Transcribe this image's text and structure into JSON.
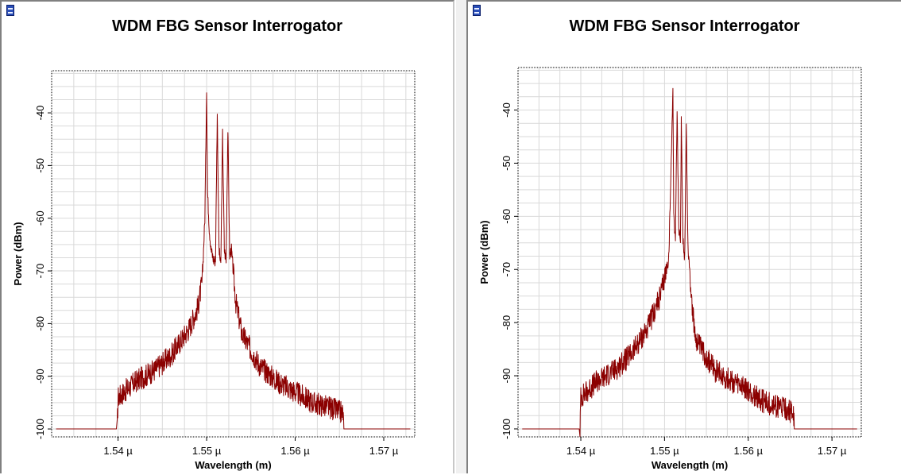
{
  "colors": {
    "trace": "#8b0000",
    "grid": "#d9d9d9",
    "frame": "#000000",
    "window_border": "#808080"
  },
  "icons": {
    "window": "chart-window-icon"
  },
  "chart_data": [
    {
      "type": "line",
      "title": "WDM FBG Sensor Interrogator",
      "xlabel": "Wavelength (m)",
      "ylabel": "Power (dBm)",
      "xlim": [
        1.5325e-06,
        1.5735e-06
      ],
      "ylim": [
        -101.5,
        -32
      ],
      "grid": true,
      "x_ticks": [
        1.54e-06,
        1.55e-06,
        1.56e-06,
        1.57e-06
      ],
      "x_tick_labels": [
        "1.54 µ",
        "1.55 µ",
        "1.56 µ",
        "1.57 µ"
      ],
      "y_ticks": [
        -100,
        -90,
        -80,
        -70,
        -60,
        -50,
        -40
      ],
      "y_tick_labels": [
        "-100",
        "-90",
        "-80",
        "-70",
        "-60",
        "-50",
        "-40"
      ],
      "series": [
        {
          "x": [
            1.533e-06,
            1.5399e-06,
            1.54e-06,
            1.542e-06,
            1.544e-06,
            1.546e-06,
            1.548e-06,
            1.549e-06,
            1.5495e-06,
            1.5498e-06,
            1.55e-06,
            1.5501e-06,
            1.5503e-06,
            1.5505e-06,
            1.5508e-06,
            1.551e-06,
            1.5512e-06,
            1.5514e-06,
            1.5516e-06,
            1.5518e-06,
            1.552e-06,
            1.5522e-06,
            1.5524e-06,
            1.5526e-06,
            1.5528e-06,
            1.553e-06,
            1.5533e-06,
            1.554e-06,
            1.556e-06,
            1.558e-06,
            1.56e-06,
            1.562e-06,
            1.564e-06,
            1.5654e-06,
            1.5655e-06,
            1.573e-06
          ],
          "y": [
            -100,
            -100,
            -94,
            -91,
            -89,
            -86,
            -81,
            -77,
            -72,
            -60,
            -35,
            -55,
            -62,
            -66,
            -68,
            -68,
            -40,
            -66,
            -69,
            -44,
            -66,
            -68,
            -43,
            -67,
            -66,
            -70,
            -76,
            -82,
            -88,
            -91,
            -93,
            -95,
            -96,
            -97,
            -100,
            -100
          ]
        }
      ]
    },
    {
      "type": "line",
      "title": "WDM FBG Sensor Interrogator",
      "xlabel": "Wavelength (m)",
      "ylabel": "Power (dBm)",
      "xlim": [
        1.5325e-06,
        1.5735e-06
      ],
      "ylim": [
        -101.5,
        -32
      ],
      "grid": true,
      "x_ticks": [
        1.54e-06,
        1.55e-06,
        1.56e-06,
        1.57e-06
      ],
      "x_tick_labels": [
        "1.54 µ",
        "1.55 µ",
        "1.56 µ",
        "1.57 µ"
      ],
      "y_ticks": [
        -100,
        -90,
        -80,
        -70,
        -60,
        -50,
        -40
      ],
      "y_tick_labels": [
        "-100",
        "-90",
        "-80",
        "-70",
        "-60",
        "-50",
        "-40"
      ],
      "series": [
        {
          "x": [
            1.533e-06,
            1.5399e-06,
            1.54e-06,
            1.542e-06,
            1.544e-06,
            1.546e-06,
            1.548e-06,
            1.5495e-06,
            1.5505e-06,
            1.5508e-06,
            1.551e-06,
            1.5511e-06,
            1.5513e-06,
            1.5515e-06,
            1.5517e-06,
            1.5519e-06,
            1.552e-06,
            1.5522e-06,
            1.5524e-06,
            1.5526e-06,
            1.5528e-06,
            1.553e-06,
            1.5533e-06,
            1.5536e-06,
            1.554e-06,
            1.556e-06,
            1.558e-06,
            1.56e-06,
            1.562e-06,
            1.564e-06,
            1.5654e-06,
            1.5655e-06,
            1.573e-06
          ],
          "y": [
            -100,
            -100,
            -94,
            -91,
            -89,
            -86,
            -81,
            -75,
            -68,
            -50,
            -35,
            -60,
            -64,
            -40,
            -62,
            -66,
            -42,
            -64,
            -68,
            -43,
            -66,
            -70,
            -77,
            -82,
            -84,
            -89,
            -91,
            -93,
            -95,
            -96,
            -97,
            -100,
            -100
          ]
        }
      ]
    }
  ]
}
